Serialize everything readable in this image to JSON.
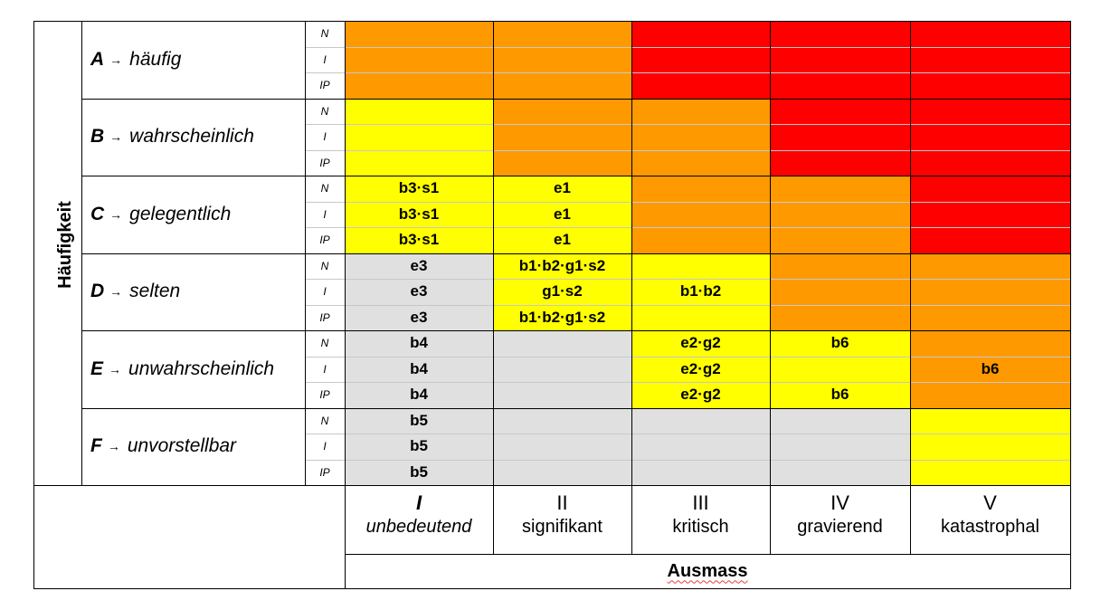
{
  "colors": {
    "red": "#ff0000",
    "orange": "#ff9900",
    "yellow": "#ffff00",
    "gray": "#e0e0e0"
  },
  "axis": {
    "frequency": "Häufigkeit",
    "severity": "Ausmass"
  },
  "subrows": [
    "N",
    "I",
    "IP"
  ],
  "frequency_rows": [
    {
      "letter": "A",
      "label": "häufig"
    },
    {
      "letter": "B",
      "label": "wahrscheinlich"
    },
    {
      "letter": "C",
      "label": "gelegentlich"
    },
    {
      "letter": "D",
      "label": "selten"
    },
    {
      "letter": "E",
      "label": "unwahrscheinlich"
    },
    {
      "letter": "F",
      "label": "unvorstellbar"
    }
  ],
  "severity_cols": [
    {
      "numeral": "I",
      "label": "unbedeutend",
      "italic": true
    },
    {
      "numeral": "II",
      "label": "signifikant",
      "italic": false
    },
    {
      "numeral": "III",
      "label": "kritisch",
      "italic": false
    },
    {
      "numeral": "IV",
      "label": "gravierend",
      "italic": false
    },
    {
      "numeral": "V",
      "label": "katastrophal",
      "italic": false
    }
  ],
  "matrix_colors": [
    [
      "orange",
      "orange",
      "red",
      "red",
      "red"
    ],
    [
      "yellow",
      "orange",
      "orange",
      "red",
      "red"
    ],
    [
      "yellow",
      "yellow",
      "orange",
      "orange",
      "red"
    ],
    [
      "gray",
      "yellow",
      "yellow",
      "orange",
      "orange"
    ],
    [
      "gray",
      "gray",
      "yellow",
      "yellow",
      "orange"
    ],
    [
      "gray",
      "gray",
      "gray",
      "gray",
      "yellow"
    ]
  ],
  "codes": [
    [
      [
        "",
        "",
        ""
      ],
      [
        "",
        "",
        ""
      ],
      [
        "",
        "",
        ""
      ],
      [
        "",
        "",
        ""
      ],
      [
        "",
        "",
        ""
      ]
    ],
    [
      [
        "",
        "",
        ""
      ],
      [
        "",
        "",
        ""
      ],
      [
        "",
        "",
        ""
      ],
      [
        "",
        "",
        ""
      ],
      [
        "",
        "",
        ""
      ]
    ],
    [
      [
        "b3·s1",
        "b3·s1",
        "b3·s1"
      ],
      [
        "e1",
        "e1",
        "e1"
      ],
      [
        "",
        "",
        ""
      ],
      [
        "",
        "",
        ""
      ],
      [
        "",
        "",
        ""
      ]
    ],
    [
      [
        "e3",
        "e3",
        "e3"
      ],
      [
        "b1·b2·g1·s2",
        "g1·s2",
        "b1·b2·g1·s2"
      ],
      [
        "",
        "b1·b2",
        ""
      ],
      [
        "",
        "",
        ""
      ],
      [
        "",
        "",
        ""
      ]
    ],
    [
      [
        "b4",
        "b4",
        "b4"
      ],
      [
        "",
        "",
        ""
      ],
      [
        "e2·g2",
        "e2·g2",
        "e2·g2"
      ],
      [
        "b6",
        "",
        "b6"
      ],
      [
        "",
        "b6",
        ""
      ]
    ],
    [
      [
        "b5",
        "b5",
        "b5"
      ],
      [
        "",
        "",
        ""
      ],
      [
        "",
        "",
        ""
      ],
      [
        "",
        "",
        ""
      ],
      [
        "",
        "",
        ""
      ]
    ]
  ]
}
